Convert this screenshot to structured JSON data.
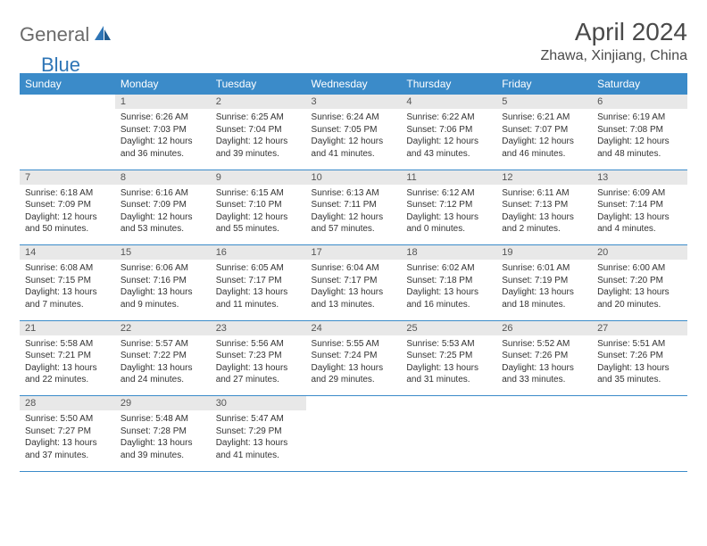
{
  "brand": {
    "text1": "General",
    "text2": "Blue"
  },
  "title": "April 2024",
  "location": "Zhawa, Xinjiang, China",
  "colors": {
    "header_bg": "#3b8bc9",
    "header_text": "#ffffff",
    "daynum_bg": "#e8e8e8",
    "border": "#3b8bc9",
    "logo_gray": "#6b6b6b",
    "logo_blue": "#2e75b6"
  },
  "weekdays": [
    "Sunday",
    "Monday",
    "Tuesday",
    "Wednesday",
    "Thursday",
    "Friday",
    "Saturday"
  ],
  "weeks": [
    {
      "days": [
        null,
        {
          "n": "1",
          "sr": "6:26 AM",
          "ss": "7:03 PM",
          "dl": "12 hours and 36 minutes."
        },
        {
          "n": "2",
          "sr": "6:25 AM",
          "ss": "7:04 PM",
          "dl": "12 hours and 39 minutes."
        },
        {
          "n": "3",
          "sr": "6:24 AM",
          "ss": "7:05 PM",
          "dl": "12 hours and 41 minutes."
        },
        {
          "n": "4",
          "sr": "6:22 AM",
          "ss": "7:06 PM",
          "dl": "12 hours and 43 minutes."
        },
        {
          "n": "5",
          "sr": "6:21 AM",
          "ss": "7:07 PM",
          "dl": "12 hours and 46 minutes."
        },
        {
          "n": "6",
          "sr": "6:19 AM",
          "ss": "7:08 PM",
          "dl": "12 hours and 48 minutes."
        }
      ]
    },
    {
      "days": [
        {
          "n": "7",
          "sr": "6:18 AM",
          "ss": "7:09 PM",
          "dl": "12 hours and 50 minutes."
        },
        {
          "n": "8",
          "sr": "6:16 AM",
          "ss": "7:09 PM",
          "dl": "12 hours and 53 minutes."
        },
        {
          "n": "9",
          "sr": "6:15 AM",
          "ss": "7:10 PM",
          "dl": "12 hours and 55 minutes."
        },
        {
          "n": "10",
          "sr": "6:13 AM",
          "ss": "7:11 PM",
          "dl": "12 hours and 57 minutes."
        },
        {
          "n": "11",
          "sr": "6:12 AM",
          "ss": "7:12 PM",
          "dl": "13 hours and 0 minutes."
        },
        {
          "n": "12",
          "sr": "6:11 AM",
          "ss": "7:13 PM",
          "dl": "13 hours and 2 minutes."
        },
        {
          "n": "13",
          "sr": "6:09 AM",
          "ss": "7:14 PM",
          "dl": "13 hours and 4 minutes."
        }
      ]
    },
    {
      "days": [
        {
          "n": "14",
          "sr": "6:08 AM",
          "ss": "7:15 PM",
          "dl": "13 hours and 7 minutes."
        },
        {
          "n": "15",
          "sr": "6:06 AM",
          "ss": "7:16 PM",
          "dl": "13 hours and 9 minutes."
        },
        {
          "n": "16",
          "sr": "6:05 AM",
          "ss": "7:17 PM",
          "dl": "13 hours and 11 minutes."
        },
        {
          "n": "17",
          "sr": "6:04 AM",
          "ss": "7:17 PM",
          "dl": "13 hours and 13 minutes."
        },
        {
          "n": "18",
          "sr": "6:02 AM",
          "ss": "7:18 PM",
          "dl": "13 hours and 16 minutes."
        },
        {
          "n": "19",
          "sr": "6:01 AM",
          "ss": "7:19 PM",
          "dl": "13 hours and 18 minutes."
        },
        {
          "n": "20",
          "sr": "6:00 AM",
          "ss": "7:20 PM",
          "dl": "13 hours and 20 minutes."
        }
      ]
    },
    {
      "days": [
        {
          "n": "21",
          "sr": "5:58 AM",
          "ss": "7:21 PM",
          "dl": "13 hours and 22 minutes."
        },
        {
          "n": "22",
          "sr": "5:57 AM",
          "ss": "7:22 PM",
          "dl": "13 hours and 24 minutes."
        },
        {
          "n": "23",
          "sr": "5:56 AM",
          "ss": "7:23 PM",
          "dl": "13 hours and 27 minutes."
        },
        {
          "n": "24",
          "sr": "5:55 AM",
          "ss": "7:24 PM",
          "dl": "13 hours and 29 minutes."
        },
        {
          "n": "25",
          "sr": "5:53 AM",
          "ss": "7:25 PM",
          "dl": "13 hours and 31 minutes."
        },
        {
          "n": "26",
          "sr": "5:52 AM",
          "ss": "7:26 PM",
          "dl": "13 hours and 33 minutes."
        },
        {
          "n": "27",
          "sr": "5:51 AM",
          "ss": "7:26 PM",
          "dl": "13 hours and 35 minutes."
        }
      ]
    },
    {
      "days": [
        {
          "n": "28",
          "sr": "5:50 AM",
          "ss": "7:27 PM",
          "dl": "13 hours and 37 minutes."
        },
        {
          "n": "29",
          "sr": "5:48 AM",
          "ss": "7:28 PM",
          "dl": "13 hours and 39 minutes."
        },
        {
          "n": "30",
          "sr": "5:47 AM",
          "ss": "7:29 PM",
          "dl": "13 hours and 41 minutes."
        },
        null,
        null,
        null,
        null
      ]
    }
  ],
  "labels": {
    "sunrise": "Sunrise:",
    "sunset": "Sunset:",
    "daylight": "Daylight:"
  }
}
